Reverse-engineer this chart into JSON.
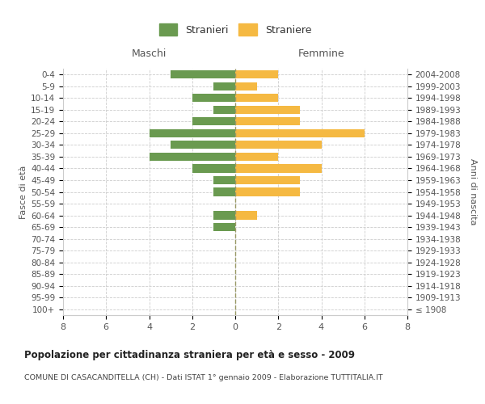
{
  "age_groups": [
    "100+",
    "95-99",
    "90-94",
    "85-89",
    "80-84",
    "75-79",
    "70-74",
    "65-69",
    "60-64",
    "55-59",
    "50-54",
    "45-49",
    "40-44",
    "35-39",
    "30-34",
    "25-29",
    "20-24",
    "15-19",
    "10-14",
    "5-9",
    "0-4"
  ],
  "birth_years": [
    "≤ 1908",
    "1909-1913",
    "1914-1918",
    "1919-1923",
    "1924-1928",
    "1929-1933",
    "1934-1938",
    "1939-1943",
    "1944-1948",
    "1949-1953",
    "1954-1958",
    "1959-1963",
    "1964-1968",
    "1969-1973",
    "1974-1978",
    "1979-1983",
    "1984-1988",
    "1989-1993",
    "1994-1998",
    "1999-2003",
    "2004-2008"
  ],
  "maschi": [
    0,
    0,
    0,
    0,
    0,
    0,
    0,
    1,
    1,
    0,
    1,
    1,
    2,
    4,
    3,
    4,
    2,
    1,
    2,
    1,
    3
  ],
  "femmine": [
    0,
    0,
    0,
    0,
    0,
    0,
    0,
    0,
    1,
    0,
    3,
    3,
    4,
    2,
    4,
    6,
    3,
    3,
    2,
    1,
    2
  ],
  "color_maschi": "#6a9a50",
  "color_femmine": "#f5b942",
  "title": "Popolazione per cittadinanza straniera per età e sesso - 2009",
  "subtitle": "COMUNE DI CASACANDITELLA (CH) - Dati ISTAT 1° gennaio 2009 - Elaborazione TUTTITALIA.IT",
  "ylabel_left": "Fasce di età",
  "ylabel_right": "Anni di nascita",
  "xlabel_left": "Maschi",
  "xlabel_right": "Femmine",
  "legend_maschi": "Stranieri",
  "legend_femmine": "Straniere",
  "xlim": 8,
  "background_color": "#ffffff",
  "grid_color": "#cccccc",
  "grid_color_text": "#aaaaaa"
}
